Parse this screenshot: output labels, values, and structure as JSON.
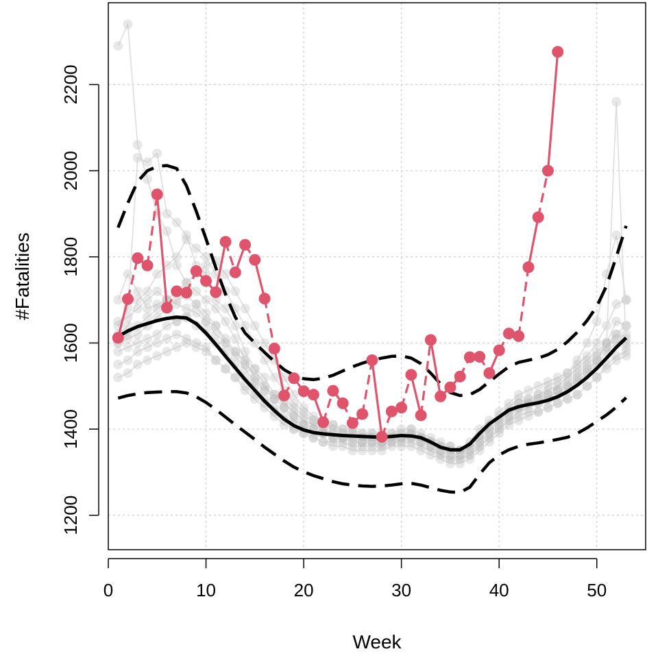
{
  "chart_data": {
    "type": "line",
    "title": "",
    "xlabel": "Week",
    "ylabel": "#Fatalities",
    "xlim": [
      0,
      55
    ],
    "ylim": [
      1120,
      2390
    ],
    "x_ticks": [
      0,
      10,
      20,
      30,
      40,
      50
    ],
    "y_ticks": [
      1200,
      1400,
      1600,
      1800,
      2000,
      2200
    ],
    "grid": true,
    "legend": "none",
    "colors": {
      "highlight": "#DF536B",
      "mean": "#000000",
      "history": "#BEBEBE",
      "grid": "#CCCCCC"
    },
    "series": [
      {
        "role": "highlight",
        "style": "solid-and-dashed red with points",
        "x": [
          1,
          2,
          3,
          4,
          5,
          6,
          7,
          8,
          9,
          10,
          11,
          12,
          13,
          14,
          15,
          16,
          17,
          18,
          19,
          20,
          21,
          22,
          23,
          24,
          25,
          26,
          27,
          28,
          29,
          30,
          31,
          32,
          33,
          34,
          35,
          36,
          37,
          38,
          39,
          40,
          41,
          42,
          43,
          44,
          45,
          46
        ],
        "values": [
          1612,
          1702,
          1797,
          1780,
          1945,
          1682,
          1720,
          1717,
          1767,
          1744,
          1718,
          1835,
          1764,
          1828,
          1793,
          1703,
          1587,
          1478,
          1518,
          1488,
          1480,
          1416,
          1489,
          1460,
          1414,
          1435,
          1560,
          1382,
          1441,
          1450,
          1526,
          1432,
          1607,
          1476,
          1497,
          1522,
          1567,
          1568,
          1530,
          1583,
          1622,
          1616,
          1776,
          1892,
          2000,
          2276
        ]
      },
      {
        "role": "mean",
        "style": "solid black",
        "x": [
          1,
          2,
          3,
          4,
          5,
          6,
          7,
          8,
          9,
          10,
          11,
          12,
          13,
          14,
          15,
          16,
          17,
          18,
          19,
          20,
          21,
          22,
          23,
          24,
          25,
          26,
          27,
          28,
          29,
          30,
          31,
          32,
          33,
          34,
          35,
          36,
          37,
          38,
          39,
          40,
          41,
          42,
          43,
          44,
          45,
          46,
          47,
          48,
          49,
          50,
          51,
          52,
          53
        ],
        "values": [
          1615,
          1628,
          1638,
          1645,
          1652,
          1657,
          1660,
          1658,
          1645,
          1623,
          1597,
          1569,
          1542,
          1515,
          1490,
          1465,
          1443,
          1423,
          1408,
          1398,
          1392,
          1389,
          1387,
          1385,
          1384,
          1383,
          1382,
          1381,
          1383,
          1385,
          1384,
          1380,
          1370,
          1358,
          1352,
          1352,
          1365,
          1390,
          1412,
          1428,
          1444,
          1452,
          1457,
          1461,
          1467,
          1475,
          1487,
          1502,
          1520,
          1541,
          1565,
          1590,
          1612
        ]
      },
      {
        "role": "upper-band",
        "style": "dashed black",
        "x": [
          1,
          2,
          3,
          4,
          5,
          6,
          7,
          8,
          9,
          10,
          11,
          12,
          13,
          14,
          15,
          16,
          17,
          18,
          19,
          20,
          21,
          22,
          23,
          24,
          25,
          26,
          27,
          28,
          29,
          30,
          31,
          32,
          33,
          34,
          35,
          36,
          37,
          38,
          39,
          40,
          41,
          42,
          43,
          44,
          45,
          46,
          47,
          48,
          49,
          50,
          51,
          52,
          53
        ],
        "values": [
          1868,
          1925,
          1975,
          2000,
          2010,
          2012,
          2005,
          1965,
          1906,
          1842,
          1775,
          1713,
          1660,
          1623,
          1600,
          1578,
          1557,
          1538,
          1525,
          1517,
          1515,
          1518,
          1525,
          1535,
          1545,
          1553,
          1560,
          1565,
          1569,
          1570,
          1565,
          1552,
          1530,
          1505,
          1485,
          1478,
          1480,
          1492,
          1510,
          1528,
          1545,
          1555,
          1560,
          1565,
          1573,
          1585,
          1603,
          1625,
          1652,
          1685,
          1733,
          1800,
          1872
        ]
      },
      {
        "role": "lower-band",
        "style": "dashed black",
        "x": [
          1,
          2,
          3,
          4,
          5,
          6,
          7,
          8,
          9,
          10,
          11,
          12,
          13,
          14,
          15,
          16,
          17,
          18,
          19,
          20,
          21,
          22,
          23,
          24,
          25,
          26,
          27,
          28,
          29,
          30,
          31,
          32,
          33,
          34,
          35,
          36,
          37,
          38,
          39,
          40,
          41,
          42,
          43,
          44,
          45,
          46,
          47,
          48,
          49,
          50,
          51,
          52,
          53
        ],
        "values": [
          1472,
          1478,
          1482,
          1485,
          1486,
          1487,
          1487,
          1484,
          1475,
          1462,
          1446,
          1428,
          1410,
          1393,
          1376,
          1358,
          1342,
          1326,
          1312,
          1301,
          1292,
          1285,
          1278,
          1273,
          1270,
          1268,
          1267,
          1268,
          1270,
          1273,
          1274,
          1270,
          1264,
          1258,
          1254,
          1253,
          1265,
          1295,
          1322,
          1340,
          1352,
          1360,
          1365,
          1368,
          1372,
          1376,
          1381,
          1390,
          1403,
          1418,
          1433,
          1451,
          1473
        ]
      }
    ],
    "background_history": {
      "role": "history",
      "style": "light gray lines with translucent points",
      "seasons": [
        [
          1700,
          1760,
          1720,
          1680,
          1690,
          1700,
          1650,
          1660,
          1690,
          1650,
          1640,
          1600,
          1580,
          1560,
          1520,
          1500,
          1470,
          1450,
          1420,
          1410,
          1400,
          1390,
          1380,
          1400,
          1380,
          1390,
          1370,
          1360,
          1380,
          1370,
          1390,
          1380,
          1370,
          1350,
          1360,
          1350,
          1370,
          1400,
          1420,
          1430,
          1450,
          1470,
          1460,
          1470,
          1480,
          1490,
          1500,
          1510,
          1530,
          1560,
          1590,
          1620,
          1600
        ],
        [
          2290,
          2340,
          2060,
          1980,
          1900,
          1860,
          1780,
          1740,
          1720,
          1700,
          1680,
          1650,
          1610,
          1560,
          1540,
          1500,
          1480,
          1460,
          1440,
          1420,
          1410,
          1400,
          1390,
          1380,
          1390,
          1370,
          1390,
          1380,
          1370,
          1380,
          1400,
          1370,
          1360,
          1340,
          1330,
          1340,
          1360,
          1380,
          1410,
          1440,
          1460,
          1480,
          1490,
          1500,
          1510,
          1520,
          1530,
          1550,
          1570,
          1600,
          1640,
          1690,
          1700
        ],
        [
          1640,
          1680,
          2030,
          2020,
          2040,
          1900,
          1880,
          1850,
          1780,
          1760,
          1700,
          1680,
          1640,
          1580,
          1540,
          1520,
          1480,
          1470,
          1450,
          1430,
          1420,
          1400,
          1410,
          1390,
          1400,
          1380,
          1370,
          1390,
          1380,
          1390,
          1380,
          1380,
          1370,
          1360,
          1350,
          1330,
          1340,
          1360,
          1380,
          1400,
          1420,
          1440,
          1450,
          1460,
          1470,
          1490,
          1500,
          1520,
          1540,
          1560,
          1600,
          1650,
          1640
        ],
        [
          1580,
          1590,
          1600,
          1610,
          1620,
          1640,
          1650,
          1660,
          1640,
          1630,
          1600,
          1580,
          1550,
          1520,
          1500,
          1470,
          1450,
          1430,
          1410,
          1400,
          1390,
          1390,
          1380,
          1380,
          1370,
          1370,
          1380,
          1370,
          1380,
          1380,
          1390,
          1380,
          1370,
          1360,
          1350,
          1350,
          1360,
          1380,
          1400,
          1420,
          1440,
          1450,
          1460,
          1460,
          1470,
          1480,
          1490,
          1510,
          1530,
          1550,
          1580,
          1600,
          1610
        ],
        [
          1550,
          1560,
          1580,
          1590,
          1600,
          1610,
          1620,
          1610,
          1600,
          1590,
          1560,
          1540,
          1520,
          1490,
          1470,
          1450,
          1430,
          1410,
          1400,
          1390,
          1380,
          1370,
          1370,
          1370,
          1360,
          1360,
          1360,
          1360,
          1370,
          1370,
          1370,
          1360,
          1350,
          1340,
          1330,
          1330,
          1340,
          1360,
          1380,
          1400,
          1420,
          1430,
          1440,
          1440,
          1450,
          1460,
          1470,
          1480,
          1500,
          1520,
          1550,
          1570,
          1580
        ],
        [
          1600,
          1620,
          1640,
          1660,
          1680,
          1700,
          1720,
          1740,
          1760,
          1780,
          1790,
          1760,
          1720,
          1680,
          1640,
          1600,
          1560,
          1520,
          1480,
          1450,
          1430,
          1420,
          1410,
          1400,
          1400,
          1390,
          1390,
          1380,
          1390,
          1400,
          1400,
          1390,
          1380,
          1370,
          1360,
          1350,
          1360,
          1380,
          1400,
          1420,
          1440,
          1460,
          1470,
          1480,
          1490,
          1500,
          1520,
          1540,
          1560,
          1580,
          1600,
          1620,
          1640
        ],
        [
          1650,
          1660,
          1680,
          1700,
          1720,
          1700,
          1690,
          1680,
          1670,
          1650,
          1620,
          1600,
          1570,
          1540,
          1510,
          1490,
          1470,
          1450,
          1430,
          1410,
          1400,
          1390,
          1380,
          1380,
          1370,
          1370,
          1380,
          1370,
          1370,
          1380,
          1380,
          1370,
          1360,
          1350,
          1340,
          1340,
          1350,
          1370,
          1390,
          1410,
          1430,
          1450,
          1460,
          1470,
          1480,
          1490,
          1500,
          1520,
          1540,
          1560,
          1590,
          1610,
          1620
        ],
        [
          1520,
          1530,
          1550,
          1560,
          1570,
          1580,
          1590,
          1600,
          1590,
          1580,
          1560,
          1540,
          1520,
          1500,
          1480,
          1460,
          1440,
          1420,
          1400,
          1390,
          1380,
          1370,
          1360,
          1360,
          1350,
          1350,
          1350,
          1350,
          1360,
          1360,
          1360,
          1350,
          1340,
          1330,
          1320,
          1320,
          1330,
          1350,
          1370,
          1390,
          1410,
          1420,
          1430,
          1440,
          1450,
          1460,
          1470,
          1480,
          1500,
          1520,
          1540,
          1560,
          1570
        ],
        [
          1620,
          1640,
          1700,
          1720,
          1760,
          1780,
          1800,
          1840,
          1820,
          1800,
          1760,
          1720,
          1680,
          1640,
          1600,
          1560,
          1520,
          1490,
          1460,
          1440,
          1420,
          1410,
          1400,
          1390,
          1390,
          1380,
          1380,
          1380,
          1390,
          1390,
          1390,
          1380,
          1370,
          1360,
          1350,
          1350,
          1360,
          1380,
          1400,
          1420,
          1440,
          1460,
          1470,
          1480,
          1500,
          1510,
          1530,
          1560,
          1600,
          1650,
          1760,
          1850,
          1700
        ],
        [
          1600,
          1610,
          1620,
          1640,
          1660,
          1680,
          1700,
          1710,
          1690,
          1670,
          1640,
          1610,
          1580,
          1550,
          1520,
          1490,
          1470,
          1450,
          1430,
          1410,
          1400,
          1390,
          1390,
          1380,
          1380,
          1370,
          1370,
          1370,
          1380,
          1380,
          1380,
          1370,
          1360,
          1350,
          1340,
          1340,
          1350,
          1370,
          1390,
          1410,
          1430,
          1450,
          1460,
          1470,
          1480,
          1490,
          1510,
          1530,
          1550,
          1570,
          1600,
          2160,
          1590
        ]
      ]
    }
  }
}
